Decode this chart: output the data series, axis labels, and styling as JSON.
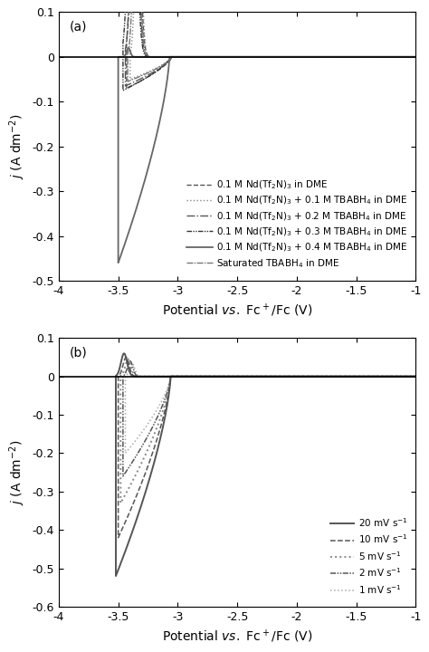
{
  "panel_a": {
    "label": "(a)",
    "xlim": [
      -4.0,
      -1.0
    ],
    "ylim": [
      -0.5,
      0.1
    ],
    "yticks": [
      0.1,
      0.0,
      -0.1,
      -0.2,
      -0.3,
      -0.4,
      -0.5
    ],
    "xticks": [
      -4.0,
      -3.5,
      -3.0,
      -2.5,
      -2.0,
      -1.5,
      -1.0
    ],
    "ylabel": "$\\it{j}$ (A dm$^{-2}$)",
    "xlabel": "Potential $\\it{vs.}$ Fc$^+$/Fc (V)",
    "hline_y": 0.0,
    "curves": [
      {
        "label": "0.1 M Nd(Tf$_2$N)$_3$ in DME",
        "ls": "--",
        "color": "#555555",
        "lw": 1.0,
        "dashes": null,
        "vertex": -3.43,
        "peak_j": -0.07,
        "onset": -3.05,
        "an_scale": 0.5,
        "an_spread": 0.12
      },
      {
        "label": "0.1 M Nd(Tf$_2$N)$_3$ + 0.1 M TBABH$_4$ in DME",
        "ls": ":",
        "color": "#888888",
        "lw": 1.0,
        "dashes": null,
        "vertex": -3.4,
        "peak_j": -0.05,
        "onset": -3.05,
        "an_scale": 0.4,
        "an_spread": 0.1
      },
      {
        "label": "0.1 M Nd(Tf$_2$N)$_3$ + 0.2 M TBABH$_4$ in DME",
        "ls": "-.",
        "color": "#555555",
        "lw": 1.0,
        "dashes": null,
        "vertex": -3.44,
        "peak_j": -0.065,
        "onset": -3.05,
        "an_scale": 0.45,
        "an_spread": 0.11
      },
      {
        "label": "0.1 M Nd(Tf$_2$N)$_3$ + 0.3 M TBABH$_4$ in DME",
        "ls": "--",
        "color": "#333333",
        "lw": 1.0,
        "dashes": [
          4,
          1,
          1,
          1,
          1,
          1
        ],
        "vertex": -3.46,
        "peak_j": -0.075,
        "onset": -3.06,
        "an_scale": 0.5,
        "an_spread": 0.12
      },
      {
        "label": "0.1 M Nd(Tf$_2$N)$_3$ + 0.4 M TBABH$_4$ in DME",
        "ls": "-",
        "color": "#666666",
        "lw": 1.3,
        "dashes": null,
        "vertex": -3.5,
        "peak_j": -0.46,
        "onset": -3.07,
        "an_scale": 0.02,
        "an_spread": 0.05
      },
      {
        "label": "Saturated TBABH$_4$ in DME",
        "ls": "-.",
        "color": "#777777",
        "lw": 1.0,
        "dashes": [
          5,
          1,
          1,
          1
        ],
        "vertex": -3.42,
        "peak_j": -0.055,
        "onset": -3.05,
        "an_scale": 0.4,
        "an_spread": 0.1
      }
    ]
  },
  "panel_b": {
    "label": "(b)",
    "xlim": [
      -4.0,
      -1.0
    ],
    "ylim": [
      -0.6,
      0.1
    ],
    "yticks": [
      0.1,
      0.0,
      -0.1,
      -0.2,
      -0.3,
      -0.4,
      -0.5,
      -0.6
    ],
    "xticks": [
      -4.0,
      -3.5,
      -3.0,
      -2.5,
      -2.0,
      -1.5,
      -1.0
    ],
    "ylabel": "$\\it{j}$ (A dm$^{-2}$)",
    "xlabel": "Potential $\\it{vs.}$ Fc$^+$/Fc (V)",
    "hline_y": 0.0,
    "curves": [
      {
        "label": "20 mV s$^{-1}$",
        "ls": "-",
        "color": "#555555",
        "lw": 1.4,
        "dashes": null,
        "vertex": -3.52,
        "peak_j": -0.52,
        "onset": -3.06,
        "an_scale": 0.06,
        "an_spread": 0.08,
        "an_shift": 0.15
      },
      {
        "label": "10 mV s$^{-1}$",
        "ls": "--",
        "color": "#555555",
        "lw": 1.1,
        "dashes": null,
        "vertex": -3.5,
        "peak_j": -0.42,
        "onset": -3.06,
        "an_scale": 0.05,
        "an_spread": 0.08,
        "an_shift": 0.15
      },
      {
        "label": "5 mV s$^{-1}$",
        "ls": ":",
        "color": "#888888",
        "lw": 1.4,
        "dashes": null,
        "vertex": -3.48,
        "peak_j": -0.33,
        "onset": -3.06,
        "an_scale": 0.045,
        "an_spread": 0.08,
        "an_shift": 0.15
      },
      {
        "label": "2 mV s$^{-1}$",
        "ls": "--",
        "color": "#555555",
        "lw": 1.1,
        "dashes": [
          4,
          1,
          1,
          1,
          1,
          1
        ],
        "vertex": -3.46,
        "peak_j": -0.26,
        "onset": -3.06,
        "an_scale": 0.04,
        "an_spread": 0.08,
        "an_shift": 0.15
      },
      {
        "label": "1 mV s$^{-1}$",
        "ls": ":",
        "color": "#aaaaaa",
        "lw": 1.1,
        "dashes": null,
        "vertex": -3.44,
        "peak_j": -0.2,
        "onset": -3.06,
        "an_scale": 0.035,
        "an_spread": 0.08,
        "an_shift": 0.15
      }
    ]
  },
  "figure_bg": "#ffffff",
  "axes_bg": "#ffffff",
  "tick_fontsize": 9,
  "label_fontsize": 10,
  "legend_fontsize": 7.5
}
